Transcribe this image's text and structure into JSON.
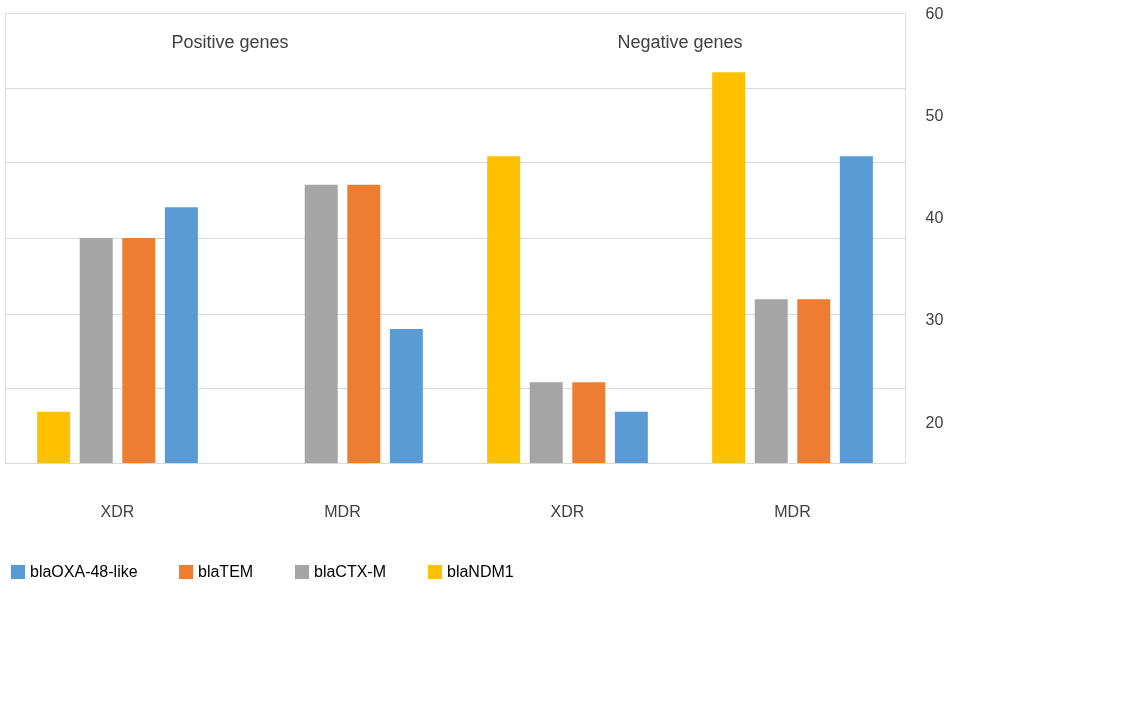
{
  "chart_data": {
    "type": "bar",
    "categories": [
      "XDR",
      "MDR",
      "XDR",
      "MDR"
    ],
    "series": [
      {
        "name": "blaOXA-48-like",
        "color": "#5b9bd5",
        "values": [
          41,
          29.1,
          21,
          46
        ]
      },
      {
        "name": "blaTEM",
        "color": "#ed7d31",
        "values": [
          38,
          43.2,
          23.9,
          32
        ]
      },
      {
        "name": "blaCTX-M",
        "color": "#a5a5a5",
        "values": [
          38,
          43.2,
          23.9,
          32
        ]
      },
      {
        "name": "blaNDM1",
        "color": "#ffc000",
        "values": [
          21,
          null,
          46,
          54.2
        ]
      }
    ],
    "ylim": [
      16,
      60
    ],
    "yticks": [
      20,
      30,
      40,
      50,
      60,
      {
        "value": 23.3,
        "label": null
      },
      {
        "value": 30.6,
        "label": null
      },
      {
        "value": 38,
        "label": null
      },
      {
        "value": 45.4,
        "label": null
      },
      {
        "value": 52.7,
        "label": null
      }
    ],
    "grid": true,
    "legend": "bottom",
    "annotations": [
      "Positive genes",
      "Negative genes"
    ]
  }
}
